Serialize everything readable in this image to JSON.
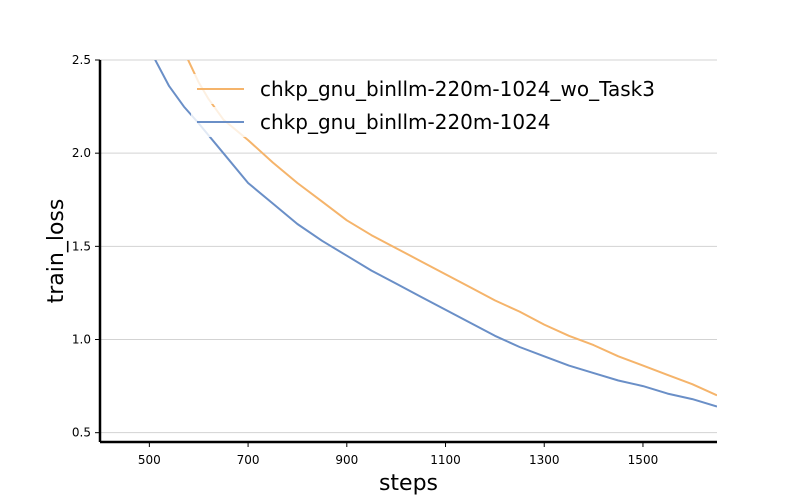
{
  "chart_data": {
    "type": "line",
    "title": "",
    "xlabel": "steps",
    "ylabel": "train_loss",
    "xlim": [
      400,
      1650
    ],
    "ylim": [
      0.45,
      2.5
    ],
    "xticks": [
      500,
      700,
      900,
      1100,
      1300,
      1500
    ],
    "yticks": [
      0.5,
      1.0,
      1.5,
      2.0,
      2.5
    ],
    "xtick_labels": [
      "500",
      "700",
      "900",
      "1100",
      "1300",
      "1500"
    ],
    "ytick_labels": [
      "0.5",
      "1.0",
      "1.5",
      "2.0",
      "2.5"
    ],
    "grid": "horizontal",
    "legend_position": "top-right",
    "series": [
      {
        "name": "chkp_gnu_binllm-220m-1024_wo_Task3",
        "color": "#f5b46b",
        "x": [
          575,
          600,
          620,
          650,
          700,
          750,
          800,
          850,
          900,
          950,
          1000,
          1050,
          1100,
          1150,
          1200,
          1250,
          1300,
          1350,
          1400,
          1450,
          1500,
          1550,
          1600,
          1650
        ],
        "y": [
          2.52,
          2.38,
          2.29,
          2.18,
          2.07,
          1.95,
          1.84,
          1.74,
          1.64,
          1.56,
          1.49,
          1.42,
          1.35,
          1.28,
          1.21,
          1.15,
          1.08,
          1.02,
          0.97,
          0.91,
          0.86,
          0.81,
          0.76,
          0.7
        ]
      },
      {
        "name": "chkp_gnu_binllm-220m-1024",
        "color": "#6a8fc7",
        "x": [
          508,
          540,
          570,
          600,
          650,
          700,
          750,
          800,
          850,
          900,
          950,
          1000,
          1050,
          1100,
          1150,
          1200,
          1250,
          1300,
          1350,
          1400,
          1450,
          1500,
          1550,
          1600,
          1650
        ],
        "y": [
          2.52,
          2.36,
          2.25,
          2.16,
          2.0,
          1.84,
          1.73,
          1.62,
          1.53,
          1.45,
          1.37,
          1.3,
          1.23,
          1.16,
          1.09,
          1.02,
          0.96,
          0.91,
          0.86,
          0.82,
          0.78,
          0.75,
          0.71,
          0.68,
          0.64
        ]
      }
    ]
  }
}
